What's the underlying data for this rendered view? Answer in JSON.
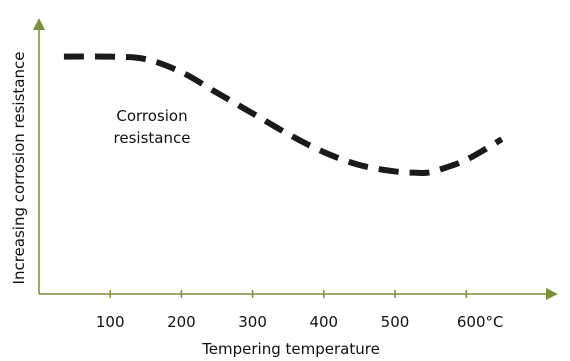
{
  "chart_data": {
    "type": "line",
    "title": "",
    "xlabel": "Tempering temperature",
    "ylabel": "Increasing corrosion resistance",
    "x_ticks": [
      100,
      200,
      300,
      400,
      500,
      600
    ],
    "x_tick_labels": [
      "100",
      "200",
      "300",
      "400",
      "500",
      "600°C"
    ],
    "xlim": [
      0,
      660
    ],
    "ylim": [
      0,
      1
    ],
    "y_ticks_shown": false,
    "grid": false,
    "series": [
      {
        "name": "Corrosion resistance",
        "style": "dashed",
        "color": "#1a1a1a",
        "x": [
          35,
          100,
          150,
          200,
          250,
          300,
          350,
          400,
          450,
          500,
          530,
          545,
          560,
          600,
          650
        ],
        "y": [
          0.92,
          0.92,
          0.91,
          0.86,
          0.78,
          0.7,
          0.62,
          0.55,
          0.5,
          0.475,
          0.47,
          0.47,
          0.48,
          0.52,
          0.6
        ]
      }
    ],
    "annotations": [
      {
        "lines": [
          "Corrosion",
          "resistance"
        ]
      }
    ],
    "colors": {
      "axis": "#7a8f3a",
      "curve": "#1a1a1a",
      "text": "#111111"
    }
  }
}
